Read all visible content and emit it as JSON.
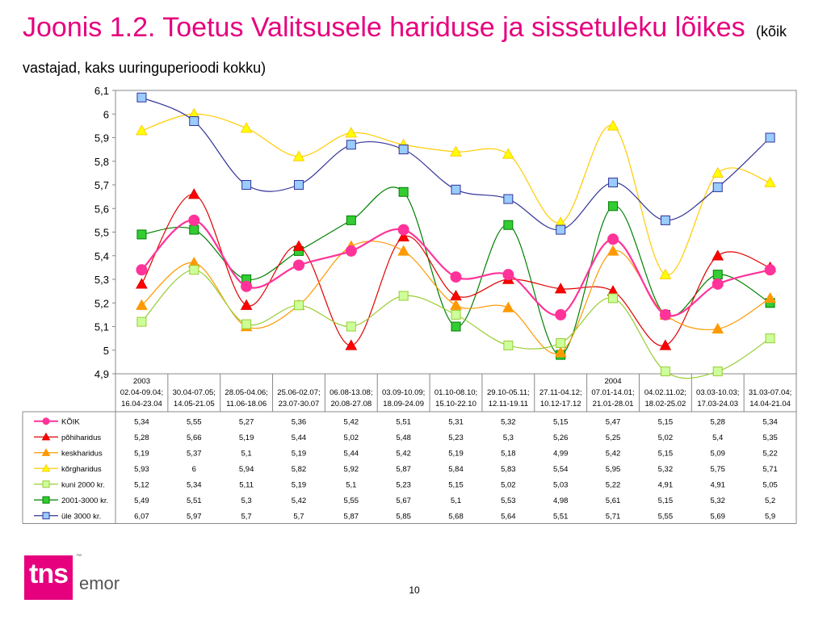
{
  "title": {
    "main": "Joonis 1.2. Toetus Valitsusele hariduse ja sissetuleku lõikes",
    "subtitle": "(kõik vastajad, kaks uuringuperioodi kokku)"
  },
  "chart_data": {
    "type": "line",
    "ylim": [
      4.9,
      6.1
    ],
    "yticks": [
      "6,1",
      "6",
      "5,9",
      "5,8",
      "5,7",
      "5,6",
      "5,5",
      "5,4",
      "5,3",
      "5,2",
      "5,1",
      "5",
      "4,9"
    ],
    "year_labels": [
      {
        "index": 0,
        "label": "2003"
      },
      {
        "index": 9,
        "label": "2004"
      }
    ],
    "categories": [
      [
        "02.04-09.04;",
        "16.04-23.04"
      ],
      [
        "30.04-07.05;",
        "14.05-21.05"
      ],
      [
        "28.05-04.06;",
        "11.06-18.06"
      ],
      [
        "25.06-02.07;",
        "23.07-30.07"
      ],
      [
        "06.08-13.08;",
        "20.08-27.08"
      ],
      [
        "03.09-10.09;",
        "18.09-24.09"
      ],
      [
        "01.10-08.10;",
        "15.10-22.10"
      ],
      [
        "29.10-05.11;",
        "12.11-19.11"
      ],
      [
        "27.11-04.12;",
        "10.12-17.12"
      ],
      [
        "07.01-14.01;",
        "21.01-28.01"
      ],
      [
        "04.02.11.02;",
        "18.02-25.02"
      ],
      [
        "03.03-10.03;",
        "17.03-24.03"
      ],
      [
        "31.03-07.04;",
        "14.04-21.04"
      ]
    ],
    "grid": false,
    "series": [
      {
        "name": "KÕIK",
        "color": "#ff3399",
        "marker": "circle",
        "values": [
          5.34,
          5.55,
          5.27,
          5.36,
          5.42,
          5.51,
          5.31,
          5.32,
          5.15,
          5.47,
          5.15,
          5.28,
          5.34
        ],
        "labels": [
          "5,34",
          "5,55",
          "5,27",
          "5,36",
          "5,42",
          "5,51",
          "5,31",
          "5,32",
          "5,15",
          "5,47",
          "5,15",
          "5,28",
          "5,34"
        ]
      },
      {
        "name": "põhiharidus",
        "color": "#e00000",
        "marker": "triangle",
        "fill": "#ff0000",
        "values": [
          5.28,
          5.66,
          5.19,
          5.44,
          5.02,
          5.48,
          5.23,
          5.3,
          5.26,
          5.25,
          5.02,
          5.4,
          5.35
        ],
        "labels": [
          "5,28",
          "5,66",
          "5,19",
          "5,44",
          "5,02",
          "5,48",
          "5,23",
          "5,3",
          "5,26",
          "5,25",
          "5,02",
          "5,4",
          "5,35"
        ]
      },
      {
        "name": "keskharidus",
        "color": "#ff9900",
        "marker": "triangle",
        "fill": "#ff9900",
        "values": [
          5.19,
          5.37,
          5.1,
          5.19,
          5.44,
          5.42,
          5.19,
          5.18,
          4.99,
          5.42,
          5.15,
          5.09,
          5.22
        ],
        "labels": [
          "5,19",
          "5,37",
          "5,1",
          "5,19",
          "5,44",
          "5,42",
          "5,19",
          "5,18",
          "4,99",
          "5,42",
          "5,15",
          "5,09",
          "5,22"
        ]
      },
      {
        "name": "kõrgharidus",
        "color": "#ffcc00",
        "marker": "triangle",
        "fill": "#ffff00",
        "values": [
          5.93,
          6,
          5.94,
          5.82,
          5.92,
          5.87,
          5.84,
          5.83,
          5.54,
          5.95,
          5.32,
          5.75,
          5.71
        ],
        "labels": [
          "5,93",
          "6",
          "5,94",
          "5,82",
          "5,92",
          "5,87",
          "5,84",
          "5,83",
          "5,54",
          "5,95",
          "5,32",
          "5,75",
          "5,71"
        ]
      },
      {
        "name": "kuni 2000 kr.",
        "color": "#99cc33",
        "marker": "square",
        "fill": "#ccff99",
        "values": [
          5.12,
          5.34,
          5.11,
          5.19,
          5.1,
          5.23,
          5.15,
          5.02,
          5.03,
          5.22,
          4.91,
          4.91,
          5.05
        ],
        "labels": [
          "5,12",
          "5,34",
          "5,11",
          "5,19",
          "5,1",
          "5,23",
          "5,15",
          "5,02",
          "5,03",
          "5,22",
          "4,91",
          "4,91",
          "5,05"
        ]
      },
      {
        "name": "2001-3000 kr.",
        "color": "#008000",
        "marker": "square",
        "fill": "#33cc33",
        "values": [
          5.49,
          5.51,
          5.3,
          5.42,
          5.55,
          5.67,
          5.1,
          5.53,
          4.98,
          5.61,
          5.15,
          5.32,
          5.2
        ],
        "labels": [
          "5,49",
          "5,51",
          "5,3",
          "5,42",
          "5,55",
          "5,67",
          "5,1",
          "5,53",
          "4,98",
          "5,61",
          "5,15",
          "5,32",
          "5,2"
        ]
      },
      {
        "name": "üle 3000 kr.",
        "color": "#333399",
        "marker": "square",
        "fill": "#99ccff",
        "values": [
          6.07,
          5.97,
          5.7,
          5.7,
          5.87,
          5.85,
          5.68,
          5.64,
          5.51,
          5.71,
          5.55,
          5.69,
          5.9
        ],
        "labels": [
          "6,07",
          "5,97",
          "5,7",
          "5,7",
          "5,87",
          "5,85",
          "5,68",
          "5,64",
          "5,51",
          "5,71",
          "5,55",
          "5,69",
          "5,9"
        ]
      }
    ]
  },
  "footer": {
    "page_number": "10",
    "logo_primary": "tns",
    "logo_secondary": "emor",
    "logo_mark": "™"
  }
}
